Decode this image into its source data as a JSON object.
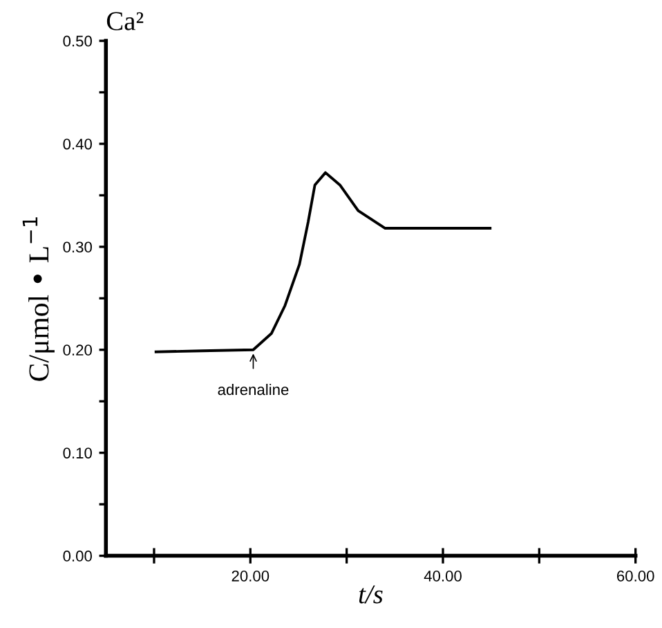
{
  "chart_data": {
    "type": "line",
    "xlabel": "t/s",
    "ylabel": "C/μmol • L$^{−1}$",
    "annotations": [
      "Ca²",
      {
        "text": "adrenaline",
        "x": 20.3,
        "y": 0.2
      }
    ],
    "x": [
      10.2,
      15,
      20.3,
      22.2,
      23.6,
      25.1,
      26.0,
      26.7,
      27.8,
      29.3,
      31.2,
      34.0,
      40,
      44.9
    ],
    "series": [
      {
        "color": "#000000",
        "values": [
          0.198,
          0.199,
          0.2,
          0.216,
          0.243,
          0.283,
          0.324,
          0.36,
          0.372,
          0.36,
          0.335,
          0.318,
          0.318,
          0.318
        ]
      }
    ],
    "xlim": [
      5,
      60
    ],
    "xticks": [
      {
        "value": 10,
        "label": null
      },
      {
        "value": 20,
        "label": "20.00"
      },
      {
        "value": 30,
        "label": null
      },
      {
        "value": 40,
        "label": "40.00"
      },
      {
        "value": 50,
        "label": null
      },
      {
        "value": 60,
        "label": "60.00"
      }
    ],
    "ylim": [
      0,
      0.5
    ],
    "yticks": [
      {
        "value": 0,
        "label": "0.00"
      },
      {
        "value": 0.05,
        "label": null
      },
      {
        "value": 0.1,
        "label": "0.10"
      },
      {
        "value": 0.15,
        "label": null
      },
      {
        "value": 0.2,
        "label": "0.20"
      },
      {
        "value": 0.25,
        "label": null
      },
      {
        "value": 0.3,
        "label": "0.30"
      },
      {
        "value": 0.35,
        "label": null
      },
      {
        "value": 0.4,
        "label": "0.40"
      },
      {
        "value": 0.45,
        "label": null
      },
      {
        "value": 0.5,
        "label": "0.50"
      }
    ],
    "grid": false,
    "legend": false,
    "marker": "none",
    "line_style": "solid"
  }
}
